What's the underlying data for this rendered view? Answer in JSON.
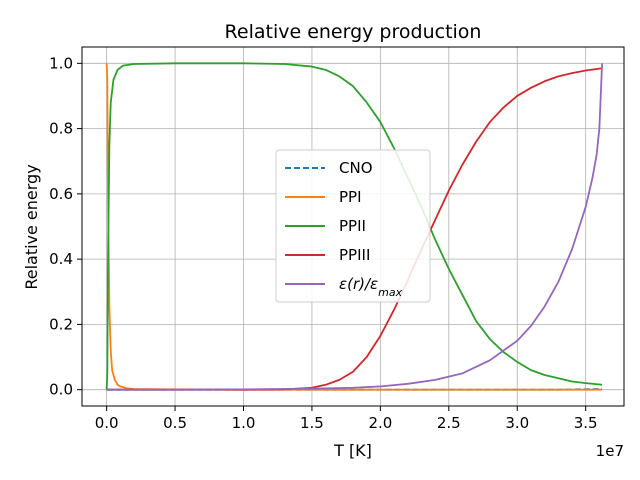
{
  "chart_data": {
    "type": "line",
    "title": "Relative energy production",
    "xlabel": "T [K]",
    "ylabel": "Relative energy",
    "x_offset_label": "1e7",
    "xlim": [
      -0.18,
      3.78
    ],
    "ylim": [
      -0.05,
      1.05
    ],
    "xticks": [
      0.0,
      0.5,
      1.0,
      1.5,
      2.0,
      2.5,
      3.0,
      3.5
    ],
    "xtick_labels": [
      "0.0",
      "0.5",
      "1.0",
      "1.5",
      "2.0",
      "2.5",
      "3.0",
      "3.5"
    ],
    "yticks": [
      0.0,
      0.2,
      0.4,
      0.6,
      0.8,
      1.0
    ],
    "ytick_labels": [
      "0.0",
      "0.2",
      "0.4",
      "0.6",
      "0.8",
      "1.0"
    ],
    "grid": true,
    "legend_position": "center-right",
    "series": [
      {
        "name": "CNO",
        "color": "#1f77b4",
        "dashed": true,
        "x": [
          0.0,
          0.5,
          1.0,
          1.5,
          2.0,
          2.5,
          3.0,
          3.3,
          3.6,
          3.62
        ],
        "y": [
          0.0,
          0.0,
          0.0,
          0.0,
          0.0,
          0.0,
          0.0,
          0.0,
          0.002,
          0.003
        ]
      },
      {
        "name": "PPI",
        "color": "#ff7f0e",
        "dashed": false,
        "x": [
          0.0,
          0.005,
          0.01,
          0.02,
          0.03,
          0.04,
          0.06,
          0.08,
          0.1,
          0.15,
          0.2,
          0.5,
          1.0,
          2.0,
          3.0,
          3.62
        ],
        "y": [
          1.0,
          0.95,
          0.6,
          0.25,
          0.12,
          0.06,
          0.03,
          0.015,
          0.01,
          0.004,
          0.002,
          0.001,
          0.0,
          0.0,
          0.0,
          0.0
        ],
        "x_unit": "1e7 K"
      },
      {
        "name": "PPII",
        "color": "#2ca02c",
        "dashed": false,
        "x": [
          0.0,
          0.005,
          0.01,
          0.02,
          0.03,
          0.05,
          0.08,
          0.12,
          0.2,
          0.5,
          1.0,
          1.3,
          1.5,
          1.6,
          1.7,
          1.8,
          1.9,
          2.0,
          2.1,
          2.2,
          2.3,
          2.4,
          2.5,
          2.6,
          2.7,
          2.8,
          2.9,
          3.0,
          3.1,
          3.2,
          3.3,
          3.4,
          3.5,
          3.62
        ],
        "y": [
          0.0,
          0.05,
          0.4,
          0.75,
          0.88,
          0.95,
          0.98,
          0.993,
          0.998,
          1.0,
          1.0,
          0.998,
          0.99,
          0.98,
          0.96,
          0.93,
          0.88,
          0.82,
          0.74,
          0.65,
          0.56,
          0.46,
          0.37,
          0.29,
          0.21,
          0.155,
          0.115,
          0.085,
          0.06,
          0.045,
          0.035,
          0.025,
          0.02,
          0.015
        ]
      },
      {
        "name": "PPIII",
        "color": "#d62728",
        "dashed": false,
        "x": [
          0.0,
          0.5,
          1.0,
          1.3,
          1.5,
          1.6,
          1.7,
          1.8,
          1.9,
          2.0,
          2.1,
          2.2,
          2.3,
          2.4,
          2.5,
          2.6,
          2.7,
          2.8,
          2.9,
          3.0,
          3.1,
          3.2,
          3.3,
          3.4,
          3.5,
          3.62
        ],
        "y": [
          0.0,
          0.0,
          0.0,
          0.001,
          0.006,
          0.015,
          0.03,
          0.055,
          0.1,
          0.165,
          0.245,
          0.335,
          0.43,
          0.52,
          0.61,
          0.69,
          0.76,
          0.82,
          0.865,
          0.9,
          0.925,
          0.945,
          0.96,
          0.97,
          0.978,
          0.985
        ]
      },
      {
        "name": "ε(r)/ε_max",
        "color": "#9467bd",
        "dashed": false,
        "x": [
          0.0,
          0.5,
          1.0,
          1.5,
          1.8,
          2.0,
          2.2,
          2.4,
          2.6,
          2.8,
          3.0,
          3.1,
          3.2,
          3.3,
          3.4,
          3.5,
          3.55,
          3.58,
          3.6,
          3.62
        ],
        "y": [
          0.0,
          0.0,
          0.001,
          0.003,
          0.006,
          0.01,
          0.018,
          0.03,
          0.05,
          0.09,
          0.15,
          0.195,
          0.255,
          0.33,
          0.43,
          0.56,
          0.65,
          0.72,
          0.8,
          1.0
        ]
      }
    ]
  }
}
